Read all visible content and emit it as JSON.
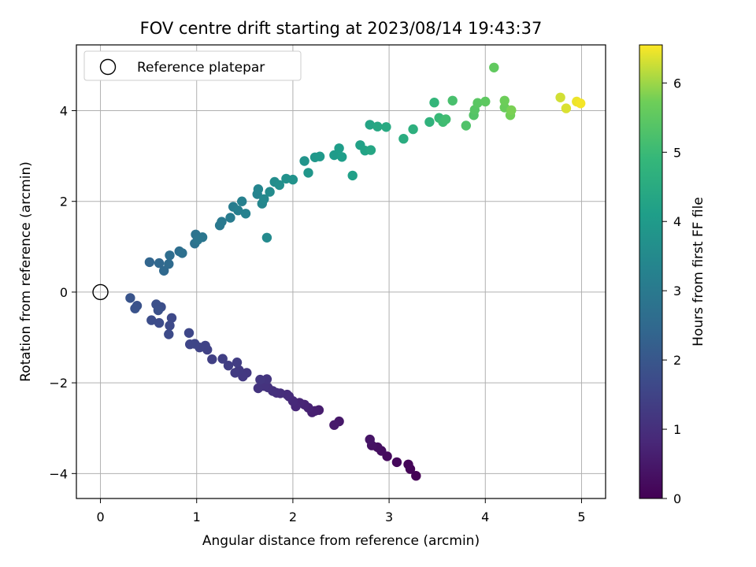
{
  "chart_data": {
    "type": "scatter",
    "title": "FOV centre drift starting at 2023/08/14 19:43:37",
    "xlabel": "Angular distance from reference (arcmin)",
    "ylabel": "Rotation from reference (arcmin)",
    "xlim": [
      -0.25,
      5.25
    ],
    "ylim": [
      -4.55,
      5.45
    ],
    "xticks": [
      "0",
      "1",
      "2",
      "3",
      "4",
      "5"
    ],
    "yticks": [
      "−4",
      "−2",
      "0",
      "2",
      "4"
    ],
    "grid": true,
    "legend": {
      "location": "upper-left",
      "entries": [
        "Reference platepar"
      ]
    },
    "reference_point": {
      "x": 0,
      "y": 0
    },
    "colorbar": {
      "label": "Hours from first FF file",
      "range": [
        0,
        6.55
      ],
      "ticks": [
        "0",
        "1",
        "2",
        "3",
        "4",
        "5",
        "6"
      ],
      "colormap": "viridis"
    },
    "points": [
      [
        3.28,
        -4.05,
        0.02
      ],
      [
        3.22,
        -3.9,
        0.06
      ],
      [
        3.2,
        -3.8,
        0.1
      ],
      [
        3.08,
        -3.75,
        0.15
      ],
      [
        2.98,
        -3.62,
        0.2
      ],
      [
        2.92,
        -3.5,
        0.25
      ],
      [
        2.88,
        -3.42,
        0.3
      ],
      [
        2.82,
        -3.38,
        0.35
      ],
      [
        2.8,
        -3.25,
        0.4
      ],
      [
        2.48,
        -2.85,
        0.48
      ],
      [
        2.43,
        -2.93,
        0.52
      ],
      [
        2.27,
        -2.6,
        0.58
      ],
      [
        2.23,
        -2.62,
        0.62
      ],
      [
        2.2,
        -2.65,
        0.66
      ],
      [
        2.16,
        -2.55,
        0.7
      ],
      [
        2.12,
        -2.48,
        0.74
      ],
      [
        2.07,
        -2.44,
        0.78
      ],
      [
        2.03,
        -2.52,
        0.82
      ],
      [
        2.0,
        -2.4,
        0.86
      ],
      [
        1.96,
        -2.3,
        0.9
      ],
      [
        1.94,
        -2.26,
        0.94
      ],
      [
        1.87,
        -2.23,
        0.97
      ],
      [
        1.83,
        -2.22,
        1.0
      ],
      [
        1.79,
        -2.18,
        1.03
      ],
      [
        1.74,
        -2.1,
        1.06
      ],
      [
        1.7,
        -2.07,
        1.09
      ],
      [
        1.64,
        -2.12,
        1.12
      ],
      [
        1.73,
        -1.92,
        1.15
      ],
      [
        1.66,
        -1.93,
        1.18
      ],
      [
        1.52,
        -1.78,
        1.21
      ],
      [
        1.48,
        -1.86,
        1.24
      ],
      [
        1.44,
        -1.72,
        1.27
      ],
      [
        1.4,
        -1.78,
        1.3
      ],
      [
        1.42,
        -1.55,
        1.33
      ],
      [
        1.33,
        -1.62,
        1.36
      ],
      [
        1.27,
        -1.47,
        1.39
      ],
      [
        1.16,
        -1.48,
        1.42
      ],
      [
        1.11,
        -1.27,
        1.45
      ],
      [
        1.09,
        -1.18,
        1.48
      ],
      [
        1.03,
        -1.22,
        1.51
      ],
      [
        0.98,
        -1.14,
        1.54
      ],
      [
        0.93,
        -1.15,
        1.57
      ],
      [
        0.92,
        -0.9,
        1.6
      ],
      [
        0.74,
        -0.57,
        1.63
      ],
      [
        0.72,
        -0.74,
        1.66
      ],
      [
        0.71,
        -0.93,
        1.69
      ],
      [
        0.61,
        -0.68,
        1.72
      ],
      [
        0.53,
        -0.62,
        1.75
      ],
      [
        0.63,
        -0.33,
        1.78
      ],
      [
        0.58,
        -0.27,
        1.81
      ],
      [
        0.6,
        -0.4,
        1.84
      ],
      [
        0.38,
        -0.3,
        1.87
      ],
      [
        0.36,
        -0.36,
        1.9
      ],
      [
        0.31,
        -0.13,
        1.93
      ],
      [
        0.51,
        0.66,
        2.4
      ],
      [
        0.61,
        0.64,
        2.45
      ],
      [
        0.66,
        0.47,
        2.5
      ],
      [
        0.71,
        0.62,
        2.55
      ],
      [
        0.72,
        0.81,
        2.6
      ],
      [
        0.82,
        0.9,
        2.65
      ],
      [
        0.85,
        0.86,
        2.7
      ],
      [
        0.98,
        1.07,
        2.75
      ],
      [
        0.99,
        1.27,
        2.8
      ],
      [
        1.01,
        1.15,
        2.85
      ],
      [
        1.06,
        1.21,
        2.9
      ],
      [
        1.24,
        1.47,
        2.95
      ],
      [
        1.26,
        1.55,
        3.0
      ],
      [
        1.35,
        1.64,
        3.05
      ],
      [
        1.38,
        1.88,
        3.1
      ],
      [
        1.43,
        1.8,
        3.15
      ],
      [
        1.47,
        2.0,
        3.2
      ],
      [
        1.51,
        1.73,
        3.25
      ],
      [
        1.63,
        2.16,
        3.3
      ],
      [
        1.64,
        2.27,
        3.35
      ],
      [
        1.68,
        1.95,
        3.4
      ],
      [
        1.7,
        2.05,
        3.45
      ],
      [
        1.73,
        1.2,
        3.5
      ],
      [
        1.76,
        2.21,
        3.55
      ],
      [
        1.81,
        2.43,
        3.6
      ],
      [
        1.86,
        2.36,
        3.65
      ],
      [
        1.93,
        2.5,
        3.7
      ],
      [
        2.0,
        2.48,
        3.75
      ],
      [
        2.12,
        2.89,
        3.8
      ],
      [
        2.16,
        2.63,
        3.85
      ],
      [
        2.23,
        2.97,
        3.9
      ],
      [
        2.28,
        2.99,
        3.95
      ],
      [
        2.43,
        3.02,
        4.0
      ],
      [
        2.48,
        3.17,
        4.05
      ],
      [
        2.51,
        2.98,
        4.1
      ],
      [
        2.62,
        2.57,
        4.15
      ],
      [
        2.7,
        3.24,
        4.2
      ],
      [
        2.75,
        3.12,
        4.25
      ],
      [
        2.8,
        3.69,
        4.3
      ],
      [
        2.81,
        3.13,
        4.35
      ],
      [
        2.88,
        3.65,
        4.4
      ],
      [
        2.97,
        3.64,
        4.45
      ],
      [
        3.15,
        3.38,
        4.55
      ],
      [
        3.25,
        3.59,
        4.65
      ],
      [
        3.42,
        3.75,
        4.75
      ],
      [
        3.47,
        4.18,
        4.85
      ],
      [
        3.52,
        3.84,
        4.95
      ],
      [
        3.56,
        3.75,
        5.05
      ],
      [
        3.59,
        3.81,
        5.1
      ],
      [
        3.66,
        4.22,
        5.2
      ],
      [
        3.8,
        3.67,
        5.3
      ],
      [
        3.88,
        3.9,
        5.35
      ],
      [
        3.89,
        4.02,
        5.4
      ],
      [
        3.92,
        4.17,
        5.45
      ],
      [
        4.0,
        4.2,
        5.5
      ],
      [
        4.09,
        4.95,
        5.55
      ],
      [
        4.2,
        4.07,
        5.65
      ],
      [
        4.2,
        4.22,
        5.7
      ],
      [
        4.26,
        3.9,
        5.75
      ],
      [
        4.27,
        4.01,
        5.8
      ],
      [
        4.78,
        4.29,
        6.3
      ],
      [
        4.84,
        4.05,
        6.35
      ],
      [
        4.95,
        4.2,
        6.45
      ],
      [
        4.99,
        4.16,
        6.5
      ]
    ]
  }
}
